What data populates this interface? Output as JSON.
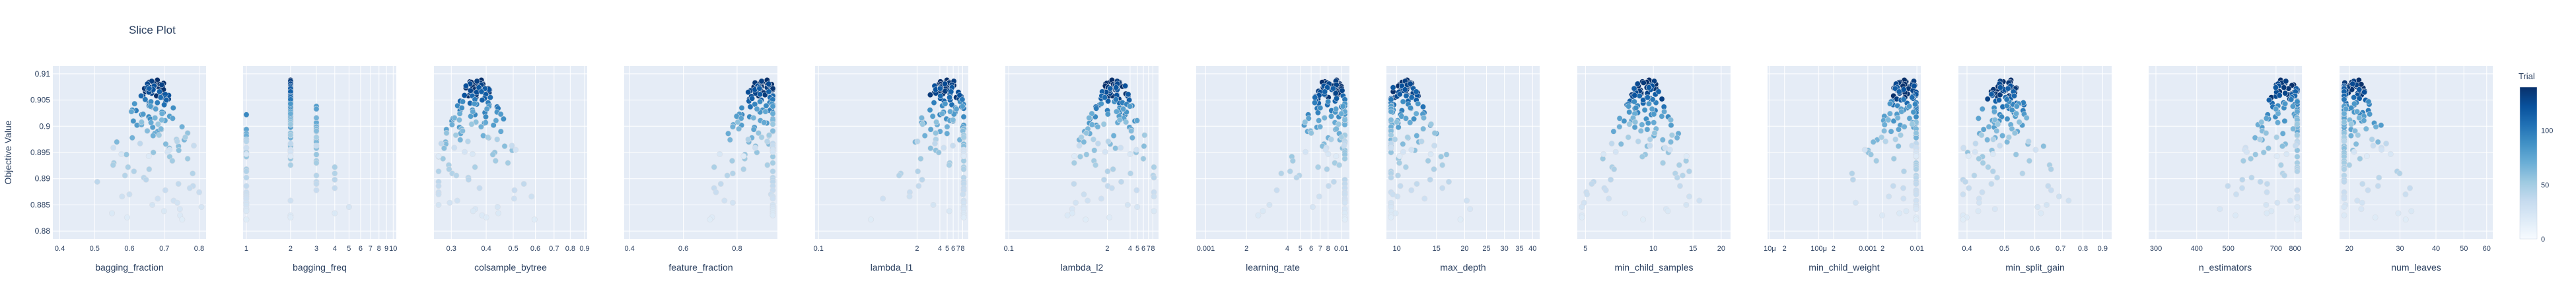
{
  "title": "Slice Plot",
  "colors": {
    "panel_bg": "#e5ecf6",
    "grid": "#ffffff",
    "text": "#2a3f5f",
    "colorscale": [
      "#f7fbff",
      "#deebf7",
      "#c6dbef",
      "#9ecae1",
      "#6baed6",
      "#4292c6",
      "#2171b5",
      "#08519c",
      "#08306b"
    ]
  },
  "chart_data": {
    "type": "scatter",
    "ylabel": "Objective Value",
    "ylim": [
      0.8785,
      0.9115
    ],
    "yticks": [
      0.88,
      0.885,
      0.89,
      0.895,
      0.9,
      0.905,
      0.91
    ],
    "ytick_labels": [
      "0.88",
      "0.885",
      "0.89",
      "0.895",
      "0.9",
      "0.905",
      "0.91"
    ],
    "colorbar": {
      "title": "Trial",
      "range": [
        0,
        140
      ],
      "ticks": [
        0,
        50,
        100
      ]
    },
    "panels": [
      {
        "xlabel": "bagging_fraction",
        "scale": "linear",
        "xlim": [
          0.38,
          0.82
        ],
        "xticks": [
          0.4,
          0.5,
          0.6,
          0.7,
          0.8
        ],
        "xtick_labels": [
          "0.4",
          "0.5",
          "0.6",
          "0.7",
          "0.8"
        ]
      },
      {
        "xlabel": "bagging_freq",
        "scale": "log",
        "xlim": [
          0.95,
          10.5
        ],
        "xticks": [
          1,
          2,
          3,
          4,
          5,
          6,
          7,
          8,
          9,
          10
        ],
        "xtick_labels": [
          "1",
          "2",
          "3",
          "4",
          "5",
          "6",
          "7",
          "8",
          "9",
          "10"
        ]
      },
      {
        "xlabel": "colsample_bytree",
        "scale": "log",
        "xlim": [
          0.26,
          0.92
        ],
        "xticks": [
          0.3,
          0.4,
          0.5,
          0.6,
          0.7,
          0.8,
          0.9
        ],
        "xtick_labels": [
          "0.3",
          "0.4",
          "0.5",
          "0.6",
          "0.7",
          "0.8",
          "0.9"
        ]
      },
      {
        "xlabel": "feature_fraction",
        "scale": "linear",
        "xlim": [
          0.38,
          0.95
        ],
        "xticks": [
          0.4,
          0.6,
          0.8
        ],
        "xtick_labels": [
          "0.4",
          "0.6",
          "0.8"
        ]
      },
      {
        "xlabel": "lambda_l1",
        "scale": "log",
        "xlim": [
          0.09,
          9.5
        ],
        "xticks": [
          0.1,
          2,
          4,
          5,
          6,
          7,
          8
        ],
        "xtick_labels": [
          "0.1",
          "2",
          "4",
          "5",
          "6",
          "7",
          "8"
        ]
      },
      {
        "xlabel": "lambda_l2",
        "scale": "log",
        "xlim": [
          0.09,
          9.5
        ],
        "xticks": [
          0.1,
          2,
          4,
          5,
          6,
          7,
          8
        ],
        "xtick_labels": [
          "0.1",
          "2",
          "4",
          "5",
          "6",
          "7",
          "8"
        ]
      },
      {
        "xlabel": "learning_rate",
        "scale": "log",
        "xlim": [
          0.00085,
          0.0115
        ],
        "xticks": [
          0.001,
          0.002,
          0.004,
          0.005,
          0.006,
          0.007,
          0.008,
          0.01
        ],
        "xtick_labels": [
          "0.001",
          "2",
          "4",
          "5",
          "6",
          "7",
          "8",
          "0.01"
        ]
      },
      {
        "xlabel": "max_depth",
        "scale": "log",
        "xlim": [
          9,
          43
        ],
        "xticks": [
          10,
          15,
          20,
          25,
          30,
          35,
          40
        ],
        "xtick_labels": [
          "10",
          "15",
          "20",
          "25",
          "30",
          "35",
          "40"
        ]
      },
      {
        "xlabel": "min_child_samples",
        "scale": "log",
        "xlim": [
          4.6,
          22
        ],
        "xticks": [
          5,
          10,
          15,
          20
        ],
        "xtick_labels": [
          "5",
          "10",
          "15",
          "20"
        ]
      },
      {
        "xlabel": "min_child_weight",
        "scale": "log",
        "xlim": [
          9e-06,
          0.012
        ],
        "xticks": [
          1e-05,
          2e-05,
          0.0001,
          0.0002,
          0.001,
          0.002,
          0.01
        ],
        "xtick_labels": [
          "10μ",
          "2",
          "100μ",
          "2",
          "0.001",
          "2",
          "0.01"
        ]
      },
      {
        "xlabel": "min_split_gain",
        "scale": "log",
        "xlim": [
          0.38,
          0.95
        ],
        "xticks": [
          0.4,
          0.5,
          0.6,
          0.7,
          0.8,
          0.9
        ],
        "xtick_labels": [
          "0.4",
          "0.5",
          "0.6",
          "0.7",
          "0.8",
          "0.9"
        ]
      },
      {
        "xlabel": "n_estimators",
        "scale": "log",
        "xlim": [
          285,
          840
        ],
        "xticks": [
          300,
          400,
          500,
          700,
          800
        ],
        "xtick_labels": [
          "300",
          "400",
          "500",
          "700",
          "800"
        ]
      },
      {
        "xlabel": "num_leaves",
        "scale": "log",
        "xlim": [
          18.5,
          63
        ],
        "xticks": [
          20,
          30,
          40,
          50,
          60
        ],
        "xtick_labels": [
          "20",
          "30",
          "40",
          "50",
          "60"
        ]
      }
    ],
    "trials": {
      "objective": [
        0.9081,
        0.9079,
        0.9078,
        0.9082,
        0.9075,
        0.9085,
        0.9071,
        0.9076,
        0.9088,
        0.9062,
        0.9073,
        0.9069,
        0.908,
        0.9066,
        0.9058,
        0.9084,
        0.9077,
        0.9064,
        0.907,
        0.9055,
        0.9072,
        0.9083,
        0.906,
        0.9074,
        0.9067,
        0.9086,
        0.9052,
        0.9079,
        0.9063,
        0.9068,
        0.9048,
        0.9081,
        0.9057,
        0.9065,
        0.9044,
        0.9077,
        0.9059,
        0.907,
        0.9041,
        0.9074,
        0.9037,
        0.9061,
        0.9053,
        0.9072,
        0.9034,
        0.905,
        0.9066,
        0.903,
        0.9045,
        0.9058,
        0.9026,
        0.9042,
        0.9055,
        0.9022,
        0.9039,
        0.9018,
        0.9047,
        0.9035,
        0.9014,
        0.9031,
        0.9051,
        0.901,
        0.9027,
        0.9043,
        0.9006,
        0.9023,
        0.9038,
        0.9002,
        0.9019,
        0.8998,
        0.9033,
        0.9015,
        0.8994,
        0.9011,
        0.9028,
        0.899,
        0.9007,
        0.8986,
        0.9024,
        0.9003,
        0.8982,
        0.8999,
        0.8978,
        0.9016,
        0.8974,
        0.8995,
        0.897,
        0.9012,
        0.8966,
        0.8991,
        0.8962,
        0.8958,
        0.9008,
        0.8954,
        0.8987,
        0.895,
        0.8946,
        0.9004,
        0.8942,
        0.8938,
        0.8983,
        0.8934,
        0.893,
        0.8979,
        0.8926,
        0.8922,
        0.8918,
        0.8975,
        0.8914,
        0.891,
        0.8906,
        0.8971,
        0.8902,
        0.8898,
        0.8894,
        0.8967,
        0.889,
        0.8886,
        0.8882,
        0.8963,
        0.8878,
        0.8874,
        0.887,
        0.8959,
        0.8866,
        0.8862,
        0.8858,
        0.8955,
        0.8854,
        0.885,
        0.8951,
        0.8846,
        0.8842,
        0.8947,
        0.8838,
        0.8834,
        0.883,
        0.8943,
        0.8826,
        0.8822
      ]
    }
  }
}
